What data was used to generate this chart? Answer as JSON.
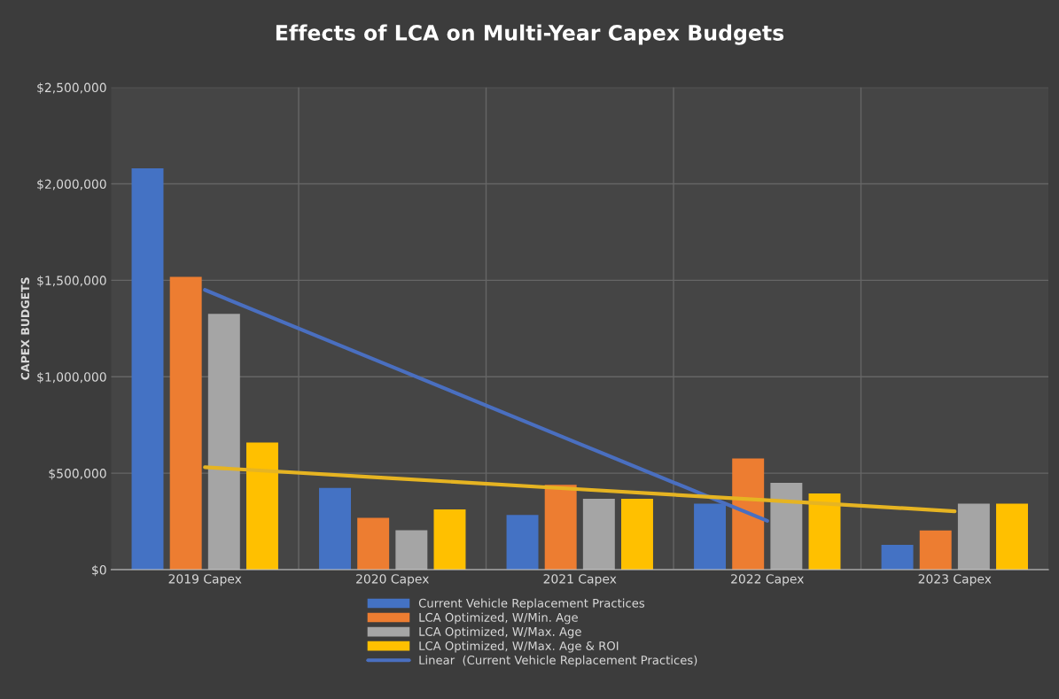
{
  "chart_data": {
    "type": "bar",
    "title": "Effects of LCA on Multi-Year Capex Budgets",
    "ylabel": "CAPEX BUDGETS",
    "categories": [
      "2019 Capex",
      "2020 Capex",
      "2021 Capex",
      "2022 Capex",
      "2023 Capex"
    ],
    "series": [
      {
        "name": "Current Vehicle Replacement Practices",
        "color": "#4472c4",
        "values": [
          2080000,
          424000,
          284000,
          342000,
          129000
        ]
      },
      {
        "name": "LCA Optimized, W/Min. Age",
        "color": "#ed7d31",
        "values": [
          1518000,
          269000,
          440000,
          577000,
          203000
        ]
      },
      {
        "name": "LCA Optimized, W/Max. Age",
        "color": "#a5a5a5",
        "values": [
          1326000,
          204000,
          368000,
          450000,
          342000
        ]
      },
      {
        "name": "LCA Optimized, W/Max. Age & ROI",
        "color": "#ffc000",
        "values": [
          659000,
          312000,
          368000,
          395000,
          342000
        ]
      },
      {
        "name": "Linear  (Current Vehicle Replacement Practices)",
        "type": "line",
        "color": "#4a6fc0",
        "values": [
          1450000,
          1051000,
          652000,
          253000,
          null
        ]
      },
      {
        "type": "line",
        "color": "#e6b422",
        "values": [
          531000,
          474000,
          417000,
          360000,
          303000
        ]
      }
    ],
    "ylim": [
      0,
      2500000
    ],
    "yticks": [
      {
        "value": 0,
        "label": "$0"
      },
      {
        "value": 500000,
        "label": "$500,000"
      },
      {
        "value": 1000000,
        "label": "$1,000,000"
      },
      {
        "value": 1500000,
        "label": "$1,500,000"
      },
      {
        "value": 2000000,
        "label": "$2,000,000"
      },
      {
        "value": 2500000,
        "label": "$2,500,000"
      }
    ],
    "grid": true,
    "legend": "bottom"
  }
}
